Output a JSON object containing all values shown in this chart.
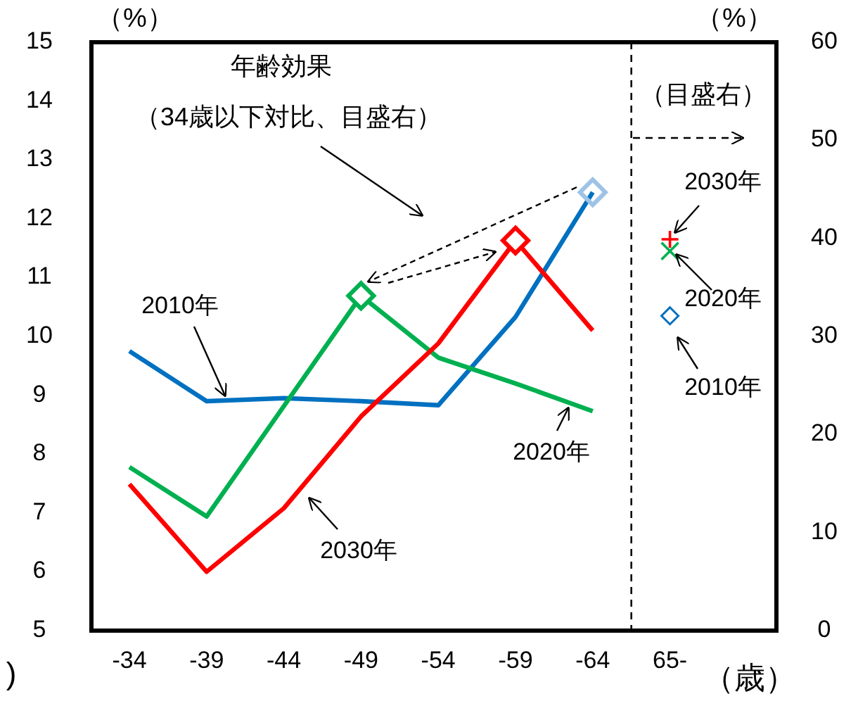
{
  "chart_data": {
    "type": "line",
    "categories": [
      "-34",
      "-39",
      "-44",
      "-49",
      "-54",
      "-59",
      "-64",
      "65-"
    ],
    "ylabel": "（%）",
    "y2label": "（%）",
    "xlabel": "（歳）",
    "ylim": [
      5,
      15
    ],
    "yticks": [
      5,
      6,
      7,
      8,
      9,
      10,
      11,
      12,
      13,
      14,
      15
    ],
    "y2lim": [
      0,
      60
    ],
    "y2ticks": [
      0,
      10,
      20,
      30,
      40,
      50,
      60
    ],
    "grid": false,
    "series": [
      {
        "name": "2010年",
        "color": "#0070c0",
        "marker": "none",
        "values": [
          9.75,
          8.9,
          8.95,
          8.9,
          8.83,
          10.33,
          12.45,
          null
        ]
      },
      {
        "name": "2020年",
        "color": "#00b050",
        "marker": "none",
        "values": [
          7.78,
          6.94,
          null,
          10.69,
          9.64,
          9.2,
          8.73,
          null
        ]
      },
      {
        "name": "2030年",
        "color": "#ff0000",
        "marker": "none",
        "values": [
          7.49,
          6.0,
          7.08,
          8.64,
          9.88,
          11.63,
          10.1,
          null
        ]
      },
      {
        "type": "scatter",
        "color": "#9dc3e6",
        "marker": "diamond",
        "values": [
          null,
          null,
          null,
          null,
          null,
          null,
          12.45,
          null
        ]
      },
      {
        "type": "scatter",
        "color": "#00b050",
        "marker": "diamond",
        "values": [
          null,
          null,
          null,
          10.69,
          null,
          null,
          null,
          null
        ]
      },
      {
        "type": "scatter",
        "color": "#ff0000",
        "marker": "diamond",
        "values": [
          null,
          null,
          null,
          null,
          null,
          11.63,
          null,
          null
        ]
      },
      {
        "name": "2030年",
        "type": "scatter",
        "axis": "y2",
        "color": "#ff0000",
        "marker": "plus",
        "values": [
          null,
          null,
          null,
          null,
          null,
          null,
          null,
          39.9
        ]
      },
      {
        "name": "2020年",
        "type": "scatter",
        "axis": "y2",
        "color": "#00b050",
        "marker": "cross",
        "values": [
          null,
          null,
          null,
          null,
          null,
          null,
          null,
          38.7
        ]
      },
      {
        "name": "2010年",
        "type": "scatter",
        "axis": "y2",
        "color": "#0070c0",
        "marker": "diamond",
        "values": [
          null,
          null,
          null,
          null,
          null,
          null,
          null,
          32.1
        ]
      }
    ],
    "annotations": [
      "年齢効果",
      "（34歳以下対比、目盛右）",
      "（目盛右）",
      ")"
    ]
  }
}
